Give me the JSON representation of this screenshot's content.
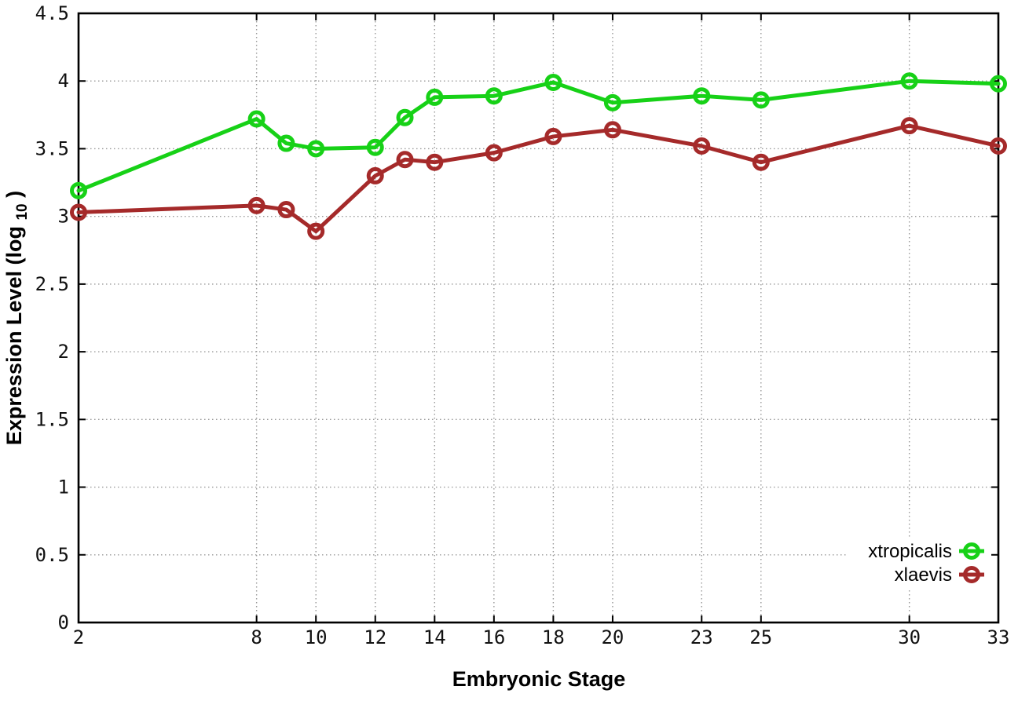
{
  "chart_data": {
    "type": "line",
    "title": "",
    "xlabel": "Embryonic Stage",
    "ylabel": "Expression Level (log10)",
    "ylabel_parts": {
      "base": "Expression Level (log",
      "sub": "10",
      "close": ")"
    },
    "x": [
      2,
      8,
      9,
      10,
      12,
      13,
      14,
      16,
      18,
      20,
      23,
      25,
      30,
      33
    ],
    "series": [
      {
        "name": "xtropicalis",
        "color": "#17d117",
        "values": [
          3.19,
          3.72,
          3.54,
          3.5,
          3.51,
          3.73,
          3.88,
          3.89,
          3.99,
          3.84,
          3.89,
          3.86,
          4.0,
          3.98
        ]
      },
      {
        "name": "xlaevis",
        "color": "#a52a2a",
        "values": [
          3.03,
          3.08,
          3.05,
          2.89,
          3.3,
          3.42,
          3.4,
          3.47,
          3.59,
          3.64,
          3.52,
          3.4,
          3.67,
          3.52
        ]
      }
    ],
    "xticks": [
      2,
      8,
      10,
      12,
      14,
      16,
      18,
      20,
      23,
      25,
      30,
      33
    ],
    "yticks": [
      0,
      0.5,
      1,
      1.5,
      2,
      2.5,
      3,
      3.5,
      4,
      4.5
    ],
    "xlim": [
      2,
      33
    ],
    "ylim": [
      0,
      4.5
    ],
    "grid": true,
    "grid_style": "dotted",
    "legend_position": "bottom-right",
    "colors": {
      "frame": "#000000",
      "grid": "#9a9a9a",
      "background": "#ffffff"
    }
  }
}
